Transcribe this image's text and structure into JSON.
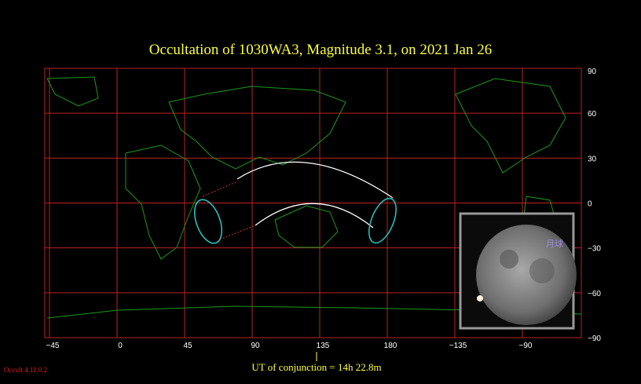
{
  "title": "Occultation  of  1030WA3,      Magnitude 3.1,   on  2021 Jan 26",
  "latitude_labels": [
    "90",
    "60",
    "30",
    "0",
    "−30",
    "−60",
    "−90"
  ],
  "longitude_labels": [
    "−45",
    "0",
    "45",
    "90",
    "135",
    "180",
    "−135",
    "−90"
  ],
  "conjunction_label": "UT of conjunction = 14h 22.8m",
  "version": "Occult 4.11.0.2",
  "inset": {
    "label": "月球"
  }
}
